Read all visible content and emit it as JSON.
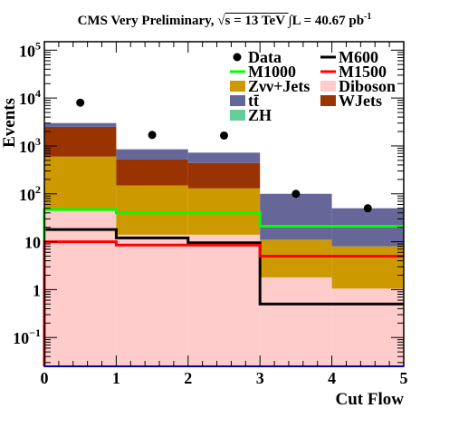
{
  "title": {
    "prefix": "CMS Very Preliminary, ",
    "sqrt_sym": "√",
    "energy": "s = 13 TeV ",
    "int_sym": "∫",
    "lumi": "L = 40.67 pb",
    "lumi_exp": "-1"
  },
  "chart_data": {
    "type": "bar",
    "subtype": "stacked-histogram-with-overlays",
    "xlabel": "Cut Flow",
    "ylabel": "Events",
    "x_scale": "linear",
    "y_scale": "log",
    "xlim": [
      0,
      5
    ],
    "ylim": [
      0.025,
      150000
    ],
    "bin_edges": [
      0,
      1,
      2,
      3,
      4,
      5
    ],
    "x_ticks": [
      {
        "value": 0,
        "label": "0"
      },
      {
        "value": 1,
        "label": "1"
      },
      {
        "value": 2,
        "label": "2"
      },
      {
        "value": 3,
        "label": "3"
      },
      {
        "value": 4,
        "label": "4"
      },
      {
        "value": 5,
        "label": "5"
      }
    ],
    "y_ticks": [
      {
        "value": 0.1,
        "base": "10",
        "exp": "−1"
      },
      {
        "value": 1,
        "base": "1",
        "exp": ""
      },
      {
        "value": 10,
        "base": "10",
        "exp": ""
      },
      {
        "value": 100,
        "base": "10",
        "exp": "2"
      },
      {
        "value": 1000,
        "base": "10",
        "exp": "3"
      },
      {
        "value": 10000,
        "base": "10",
        "exp": "4"
      },
      {
        "value": 100000,
        "base": "10",
        "exp": "5"
      }
    ],
    "stacked_backgrounds": [
      {
        "name": "Diboson",
        "color": "#ffcccc",
        "values": [
          45,
          14,
          14,
          1.8,
          1.05
        ]
      },
      {
        "name": "ZH",
        "color": "#66cc99",
        "values": [
          0,
          0,
          0,
          0,
          0
        ]
      },
      {
        "name": "Zνν+Jets",
        "color": "#cc9900",
        "values": [
          555,
          136,
          116,
          9.2,
          6.95
        ]
      },
      {
        "name": "WJets",
        "color": "#993300",
        "values": [
          1900,
          370,
          310,
          0,
          0
        ]
      },
      {
        "name": "tt̄",
        "color": "#666699",
        "values": [
          500,
          330,
          285,
          89,
          42
        ]
      }
    ],
    "signal_lines": [
      {
        "name": "M600",
        "color": "#000000",
        "values": [
          18,
          12,
          9.5,
          0.5,
          0.5
        ]
      },
      {
        "name": "M1000",
        "color": "#00ff00",
        "values": [
          47,
          40,
          40,
          21,
          21
        ]
      },
      {
        "name": "M1500",
        "color": "#ff0000",
        "values": [
          10,
          8.5,
          8.5,
          5,
          5
        ]
      }
    ],
    "data_points": {
      "name": "Data",
      "x": [
        0.5,
        1.5,
        2.5,
        3.5,
        4.5
      ],
      "y": [
        8000,
        1700,
        1650,
        100,
        50
      ]
    },
    "legend": {
      "placement": "top-right",
      "rows": [
        [
          {
            "name": "Data",
            "kind": "marker",
            "color": "#000000"
          },
          {
            "name": "M600",
            "kind": "line",
            "color": "#000000"
          }
        ],
        [
          {
            "name": "M1000",
            "kind": "line",
            "color": "#00ff00"
          },
          {
            "name": "M1500",
            "kind": "line",
            "color": "#ff0000"
          }
        ],
        [
          {
            "name": "Zνν+Jets",
            "kind": "box",
            "color": "#cc9900"
          },
          {
            "name": "Diboson",
            "kind": "box",
            "color": "#ffcccc"
          }
        ],
        [
          {
            "name": "tt̄",
            "kind": "box",
            "color": "#666699"
          },
          {
            "name": "WJets",
            "kind": "box",
            "color": "#993300"
          }
        ],
        [
          {
            "name": "ZH",
            "kind": "box",
            "color": "#66cc99"
          }
        ]
      ]
    }
  }
}
